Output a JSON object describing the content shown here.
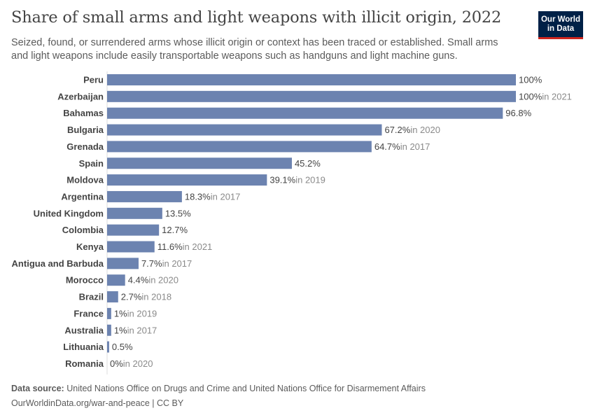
{
  "header": {
    "title": "Share of small arms and light weapons with illicit origin, 2022",
    "subtitle": "Seized, found, or surrendered arms whose illicit origin or context has been traced or established. Small arms and light weapons include easily transportable weapons such as handguns and light machine guns.",
    "logo_line1": "Our World",
    "logo_line2": "in Data"
  },
  "footer": {
    "source_label": "Data source:",
    "source_text": "United Nations Office on Drugs and Crime and United Nations Office for Disarmement Affairs",
    "url_license": "OurWorldinData.org/war-and-peace | CC BY"
  },
  "colors": {
    "bar": "#6c83b0",
    "value_text": "#444444",
    "note_text": "#8a8a8a",
    "logo_bg": "#002147",
    "logo_accent": "#ce261e"
  },
  "chart_data": {
    "type": "bar",
    "orientation": "horizontal",
    "xlim": [
      0,
      100
    ],
    "unit": "%",
    "categories": [
      "Peru",
      "Azerbaijan",
      "Bahamas",
      "Bulgaria",
      "Grenada",
      "Spain",
      "Moldova",
      "Argentina",
      "United Kingdom",
      "Colombia",
      "Kenya",
      "Antigua and Barbuda",
      "Morocco",
      "Brazil",
      "France",
      "Australia",
      "Lithuania",
      "Romania"
    ],
    "values": [
      100,
      100,
      96.8,
      67.2,
      64.7,
      45.2,
      39.1,
      18.3,
      13.5,
      12.7,
      11.6,
      7.7,
      4.4,
      2.7,
      1,
      1,
      0.5,
      0
    ],
    "value_labels": [
      "100%",
      "100%",
      "96.8%",
      "67.2%",
      "64.7%",
      "45.2%",
      "39.1%",
      "18.3%",
      "13.5%",
      "12.7%",
      "11.6%",
      "7.7%",
      "4.4%",
      "2.7%",
      "1%",
      "1%",
      "0.5%",
      "0%"
    ],
    "year_notes": [
      "",
      "in 2021",
      "",
      "in 2020",
      "in 2017",
      "",
      "in 2019",
      "in 2017",
      "",
      "",
      "in 2021",
      "in 2017",
      "in 2020",
      "in 2018",
      "in 2019",
      "in 2017",
      "",
      "in 2020"
    ]
  }
}
